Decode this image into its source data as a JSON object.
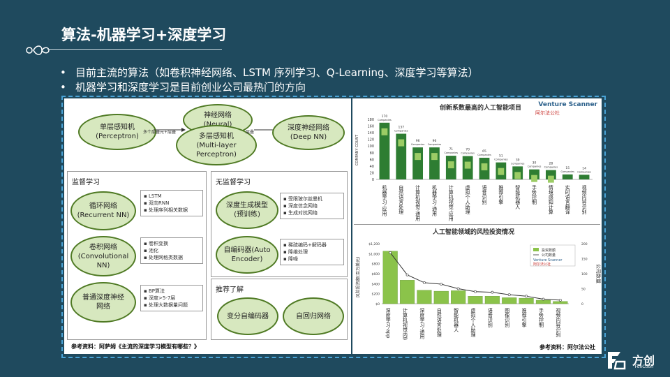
{
  "slide": {
    "title": "算法-机器学习+深度学习",
    "bullets": [
      "目前主流的算法（如卷积神经网络、LSTM 序列学习、Q-Learning、深度学习等算法）",
      "机器学习和深度学习是目前创业公司最热门的方向"
    ]
  },
  "diagram": {
    "top_nodes": {
      "perceptron": [
        "单层感知机",
        "(Perceptron)"
      ],
      "neural": [
        "神经网络",
        "(Neural)"
      ],
      "mlp": [
        "多层感知机",
        "(Multi-layer",
        "Perceptron)"
      ],
      "deepnn": [
        "深度神经网络",
        "(Deep NN)"
      ],
      "arrow1": "多个层叠元+层叠",
      "arrow2": "层叠"
    },
    "supervised": {
      "title": "监督学习",
      "rnn": [
        "循环网络",
        "(Recurrent NN)"
      ],
      "cnn": [
        "卷积网络",
        "(Convolutional",
        "NN)"
      ],
      "dnn": [
        "普通深度神经",
        "网络"
      ],
      "rnn_notes": [
        "LSTM",
        "双向RNN",
        "处理序列相关数据"
      ],
      "cnn_notes": [
        "卷积变换",
        "池化",
        "处理网格类数据"
      ],
      "dnn_notes": [
        "BP算法",
        "深度>5-7层",
        "处理大数据量问题"
      ]
    },
    "unsupervised": {
      "title": "无监督学习",
      "gen": [
        "深度生成模型",
        "(预训练)"
      ],
      "ae": [
        "自编码器(Auto",
        "Encoder)"
      ],
      "gen_notes": [
        "受限玻尔兹曼机",
        "深度信念网络",
        "生成对抗网络"
      ],
      "ae_notes": [
        "稀疏编码+解码器",
        "降维处理",
        "降噪"
      ]
    },
    "recommend": {
      "title": "推荐了解",
      "vae": "变分自编码器",
      "rr": "自回归网络"
    },
    "reference": "参考资料：阿萨姆《主流的深度学习模型有哪些？》"
  },
  "chart_data": [
    {
      "type": "bar",
      "title": "创新系数最高的人工智能项目",
      "ylabel": "COMPANY COUNT",
      "ylim": [
        0,
        180
      ],
      "yticks": [
        0,
        20,
        40,
        60,
        80,
        100,
        120,
        140,
        160,
        180
      ],
      "categories": [
        "机器学习·应用",
        "自然语言处理",
        "计算机视觉·通用",
        "机器学习·通用",
        "计算机视觉·应用",
        "虚拟个人助理",
        "语音识别",
        "推荐引擎",
        "智能机器人",
        "手势控制",
        "情境感知计算",
        "实时语言翻译",
        "视频内容识别"
      ],
      "values": [
        170,
        137,
        96,
        96,
        71,
        70,
        65,
        51,
        39,
        30,
        28,
        15,
        14
      ],
      "labels": [
        "170 Companies",
        "137 Companies",
        "96 Companies",
        "96 Companies",
        "71 Companies",
        "70 Companies",
        "65 Companies",
        "51 Companies",
        "39 Companies",
        "30 Companies",
        "28 Companies",
        "15 Companies",
        "14 Companies"
      ],
      "color": "#2e7d32",
      "brand": "Venture Scanner",
      "brand2": "阿尔法公社"
    },
    {
      "type": "bar+line",
      "title": "人工智能领域的风险投资情况",
      "ylabel": "风险投资额(百万美元)",
      "y2label": "公司数量",
      "ylim": [
        0,
        1200
      ],
      "yticks": [
        "$0",
        "$200",
        "$400",
        "$600",
        "$800",
        "$1,000",
        "$1,200"
      ],
      "y2lim": [
        0,
        200
      ],
      "y2ticks": [
        0,
        50,
        100,
        150,
        200
      ],
      "categories": [
        "深度学习·app",
        "计算机视觉内容识别",
        "深度学习·通用",
        "自然语言处理",
        "智能机器人",
        "虚拟个人助理",
        "语音识别",
        "图像识别",
        "推荐引擎",
        "手势控制",
        "视频内容识别"
      ],
      "series": [
        {
          "name": "投资数额",
          "values": [
            1050,
            470,
            270,
            250,
            260,
            150,
            150,
            120,
            110,
            70,
            45
          ]
        },
        {
          "name": "公司数量",
          "values": [
            170,
            96,
            70,
            65,
            50,
            40,
            38,
            30,
            25,
            15,
            12
          ]
        }
      ],
      "bar_color": "#8bc34a",
      "line_color": "#333333",
      "legend_position": "top-right",
      "brand": "Venture Scanner",
      "brand2": "阿尔法公社",
      "reference": "参考资料：阿尔法公社"
    }
  ],
  "logo": {
    "main": "方创",
    "sub": "FunCtion"
  }
}
